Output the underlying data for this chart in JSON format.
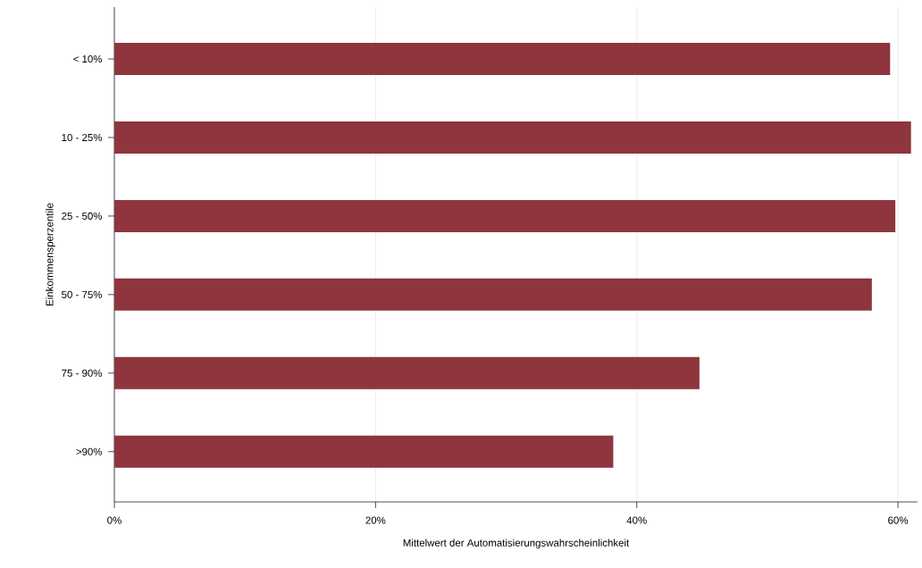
{
  "chart_data": {
    "type": "bar",
    "orientation": "horizontal",
    "categories": [
      "< 10%",
      "10 - 25%",
      "25 - 50%",
      "50 - 75%",
      "75 - 90%",
      ">90%"
    ],
    "values": [
      59.4,
      61.0,
      59.8,
      58.0,
      44.8,
      38.2
    ],
    "color": "#8e353d",
    "xlim": [
      0,
      61.5
    ],
    "xticks": [
      {
        "value": 0,
        "label": "0%"
      },
      {
        "value": 20,
        "label": "20%"
      },
      {
        "value": 40,
        "label": "40%"
      },
      {
        "value": 60,
        "label": "60%"
      }
    ],
    "xlabel": "Mittelwert der Automatisierungswahrscheinlichkeit",
    "ylabel": "Einkommensperzentile",
    "grid": "x"
  }
}
